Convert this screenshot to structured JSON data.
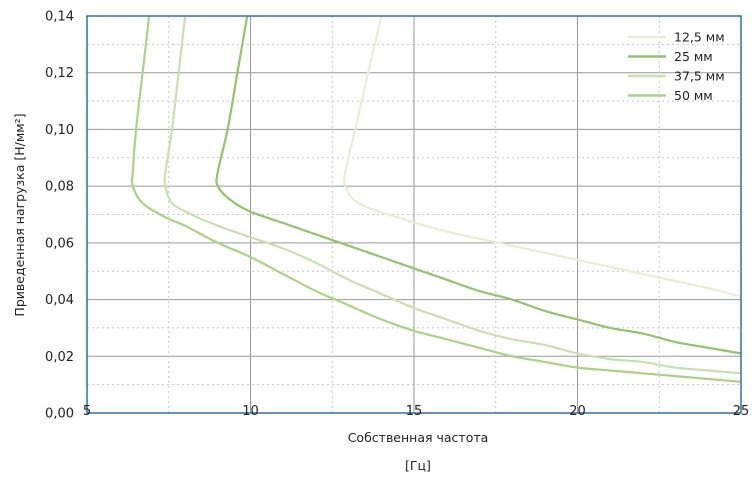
{
  "chart_data": {
    "type": "line",
    "xlabel": "Собственная частота",
    "xunit": "[Гц]",
    "ylabel": "Приведенная нагрузка [Н/мм²]",
    "xlim": [
      5,
      25
    ],
    "ylim": [
      0,
      0.14
    ],
    "x_ticks": [
      "5",
      "10",
      "15",
      "20",
      "25"
    ],
    "y_ticks": [
      "0,00",
      "0,02",
      "0,04",
      "0,06",
      "0,08",
      "0,10",
      "0,12",
      "0,14"
    ],
    "grid": true,
    "legend_position": "top-right",
    "series": [
      {
        "name": "12,5 мм",
        "color": "#e6eed6",
        "points": [
          [
            14.0,
            0.14
          ],
          [
            13.6,
            0.12
          ],
          [
            13.2,
            0.1
          ],
          [
            12.9,
            0.085
          ],
          [
            12.9,
            0.08
          ],
          [
            13.3,
            0.074
          ],
          [
            14.5,
            0.069
          ],
          [
            16.0,
            0.064
          ],
          [
            18.0,
            0.059
          ],
          [
            20.0,
            0.054
          ],
          [
            22.0,
            0.049
          ],
          [
            24.0,
            0.044
          ],
          [
            25.0,
            0.041
          ]
        ]
      },
      {
        "name": "25 мм",
        "color": "#93c36b",
        "points": [
          [
            9.9,
            0.14
          ],
          [
            9.6,
            0.12
          ],
          [
            9.3,
            0.1
          ],
          [
            9.0,
            0.085
          ],
          [
            9.0,
            0.08
          ],
          [
            9.4,
            0.075
          ],
          [
            10.0,
            0.071
          ],
          [
            11.0,
            0.067
          ],
          [
            12.0,
            0.063
          ],
          [
            13.0,
            0.059
          ],
          [
            14.0,
            0.055
          ],
          [
            15.0,
            0.051
          ],
          [
            16.0,
            0.047
          ],
          [
            17.0,
            0.043
          ],
          [
            18.0,
            0.04
          ],
          [
            19.0,
            0.036
          ],
          [
            20.0,
            0.033
          ],
          [
            21.0,
            0.03
          ],
          [
            22.0,
            0.028
          ],
          [
            23.0,
            0.025
          ],
          [
            24.0,
            0.023
          ],
          [
            25.0,
            0.021
          ]
        ]
      },
      {
        "name": "37,5 мм",
        "color": "#cbe0b1",
        "points": [
          [
            8.0,
            0.14
          ],
          [
            7.8,
            0.12
          ],
          [
            7.6,
            0.1
          ],
          [
            7.4,
            0.085
          ],
          [
            7.4,
            0.08
          ],
          [
            7.6,
            0.074
          ],
          [
            8.2,
            0.07
          ],
          [
            9.0,
            0.066
          ],
          [
            10.0,
            0.062
          ],
          [
            11.0,
            0.058
          ],
          [
            12.0,
            0.053
          ],
          [
            13.0,
            0.047
          ],
          [
            14.0,
            0.042
          ],
          [
            15.0,
            0.037
          ],
          [
            16.0,
            0.033
          ],
          [
            17.0,
            0.029
          ],
          [
            18.0,
            0.026
          ],
          [
            19.0,
            0.024
          ],
          [
            20.0,
            0.021
          ],
          [
            21.0,
            0.019
          ],
          [
            22.0,
            0.018
          ],
          [
            23.0,
            0.016
          ],
          [
            24.0,
            0.015
          ],
          [
            25.0,
            0.014
          ]
        ]
      },
      {
        "name": "50 мм",
        "color": "#add286",
        "points": [
          [
            6.9,
            0.14
          ],
          [
            6.7,
            0.12
          ],
          [
            6.5,
            0.1
          ],
          [
            6.4,
            0.085
          ],
          [
            6.4,
            0.08
          ],
          [
            6.7,
            0.074
          ],
          [
            7.4,
            0.069
          ],
          [
            8.0,
            0.066
          ],
          [
            9.0,
            0.06
          ],
          [
            10.0,
            0.055
          ],
          [
            11.0,
            0.049
          ],
          [
            12.0,
            0.043
          ],
          [
            13.0,
            0.038
          ],
          [
            14.0,
            0.033
          ],
          [
            15.0,
            0.029
          ],
          [
            16.0,
            0.026
          ],
          [
            17.0,
            0.023
          ],
          [
            18.0,
            0.02
          ],
          [
            19.0,
            0.018
          ],
          [
            20.0,
            0.016
          ],
          [
            21.0,
            0.015
          ],
          [
            22.0,
            0.014
          ],
          [
            23.0,
            0.013
          ],
          [
            24.0,
            0.012
          ],
          [
            25.0,
            0.011
          ]
        ]
      }
    ]
  }
}
